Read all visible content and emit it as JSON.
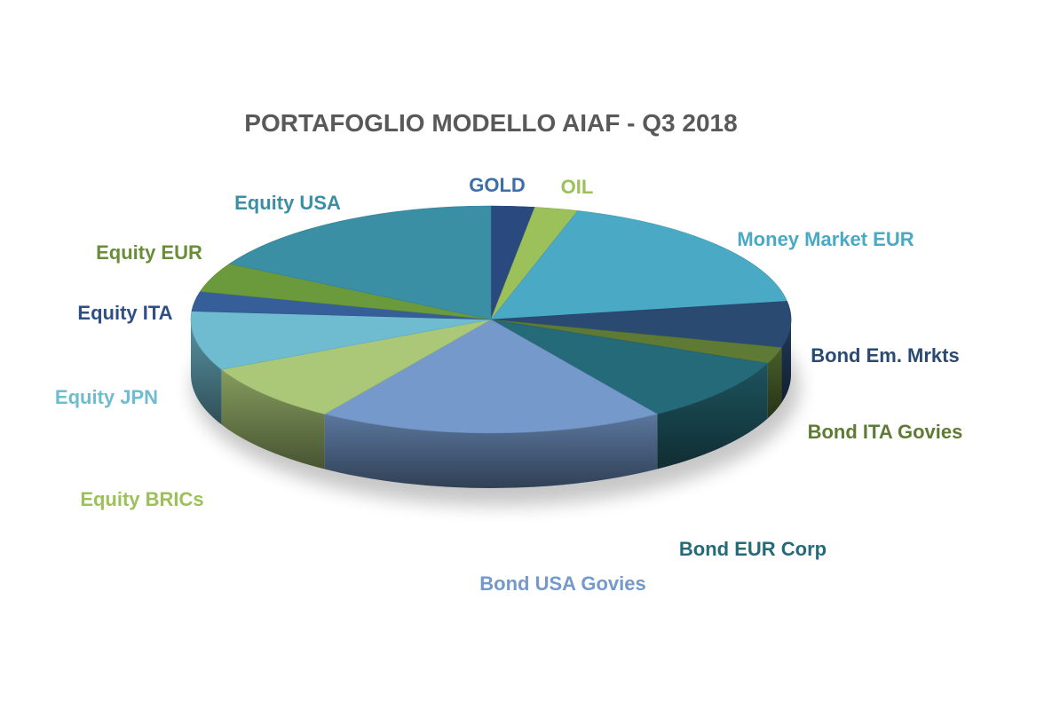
{
  "chart_data": {
    "type": "pie",
    "title": "PORTAFOGLIO MODELLO AIAF - Q3 2018",
    "legend": "none",
    "slices": [
      {
        "label": "GOLD",
        "value": 2.5,
        "color": "#2a4a7f",
        "label_color": "#3e6ea8"
      },
      {
        "label": "OIL",
        "value": 2.5,
        "color": "#9cc05a",
        "label_color": "#9cc05a"
      },
      {
        "label": "Money Market EUR",
        "value": 19,
        "color": "#4aa9c4",
        "label_color": "#4aa9c4"
      },
      {
        "label": "Bond Em. Mrkts",
        "value": 7,
        "color": "#2a4a72",
        "label_color": "#2a4a72"
      },
      {
        "label": "Bond ITA Govies",
        "value": 2.5,
        "color": "#5e7a34",
        "label_color": "#5e7a34"
      },
      {
        "label": "Bond EUR Corp",
        "value": 10,
        "color": "#256a78",
        "label_color": "#256a78"
      },
      {
        "label": "Bond USA Govies",
        "value": 20,
        "color": "#7499ca",
        "label_color": "#7499ca"
      },
      {
        "label": "Equity BRICs",
        "value": 9,
        "color": "#aac878",
        "label_color": "#9cc05a"
      },
      {
        "label": "Equity JPN",
        "value": 9,
        "color": "#6fbcd0",
        "label_color": "#6fbcd0"
      },
      {
        "label": "Equity ITA",
        "value": 3,
        "color": "#365f99",
        "label_color": "#2f4f84"
      },
      {
        "label": "Equity EUR",
        "value": 4.5,
        "color": "#6a9a3c",
        "label_color": "#6a8d3a"
      },
      {
        "label": "Equity USA",
        "value": 18,
        "color": "#3a8fa4",
        "label_color": "#3a8fa4"
      }
    ]
  }
}
